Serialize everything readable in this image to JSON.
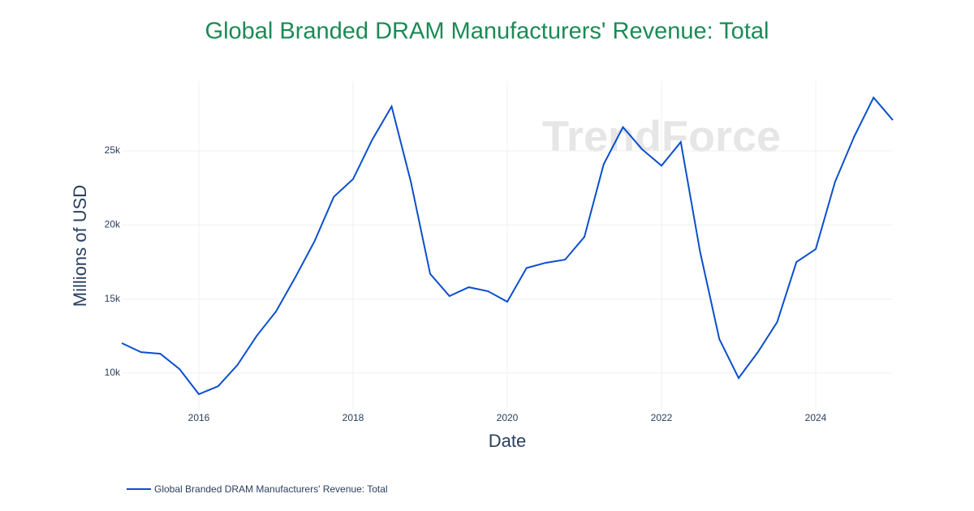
{
  "chart_data": {
    "type": "line",
    "title": "Global Branded DRAM Manufacturers' Revenue: Total",
    "x_label": "Date",
    "y_label": "Millions of USD",
    "watermark": "TrendForce",
    "x": [
      2015,
      2015.25,
      2015.5,
      2015.75,
      2016,
      2016.25,
      2016.5,
      2016.75,
      2017,
      2017.25,
      2017.5,
      2017.75,
      2018,
      2018.25,
      2018.5,
      2018.75,
      2019,
      2019.25,
      2019.5,
      2019.75,
      2020,
      2020.25,
      2020.5,
      2020.75,
      2021,
      2021.25,
      2021.5,
      2021.75,
      2022,
      2022.25,
      2022.5,
      2022.75,
      2023,
      2023.25,
      2023.5,
      2023.75,
      2024,
      2024.25,
      2024.5,
      2024.75,
      2025
    ],
    "series": [
      {
        "name": "Global Branded DRAM Manufacturers' Revenue: Total",
        "color": "#0b4fcc",
        "values": [
          12030,
          11420,
          11310,
          10270,
          8580,
          9120,
          10550,
          12520,
          14160,
          16460,
          18900,
          21900,
          23100,
          25770,
          28000,
          22900,
          16700,
          15200,
          15800,
          15530,
          14820,
          17100,
          17450,
          17660,
          19200,
          24100,
          26600,
          25100,
          24000,
          25600,
          18200,
          12300,
          9670,
          11420,
          13450,
          17500,
          18370,
          22900,
          25980,
          28600,
          27080
        ]
      }
    ],
    "xlim": [
      2015,
      2025
    ],
    "xticks": [
      2016,
      2018,
      2020,
      2022,
      2024
    ],
    "ylim": [
      7540,
      29710
    ],
    "yticks": [
      {
        "value": 10000,
        "label": "10k"
      },
      {
        "value": 15000,
        "label": "15k"
      },
      {
        "value": 20000,
        "label": "20k"
      },
      {
        "value": 25000,
        "label": "25k"
      }
    ],
    "grid": true,
    "legend": "bottom-left",
    "title_color": "#1b8a55"
  }
}
